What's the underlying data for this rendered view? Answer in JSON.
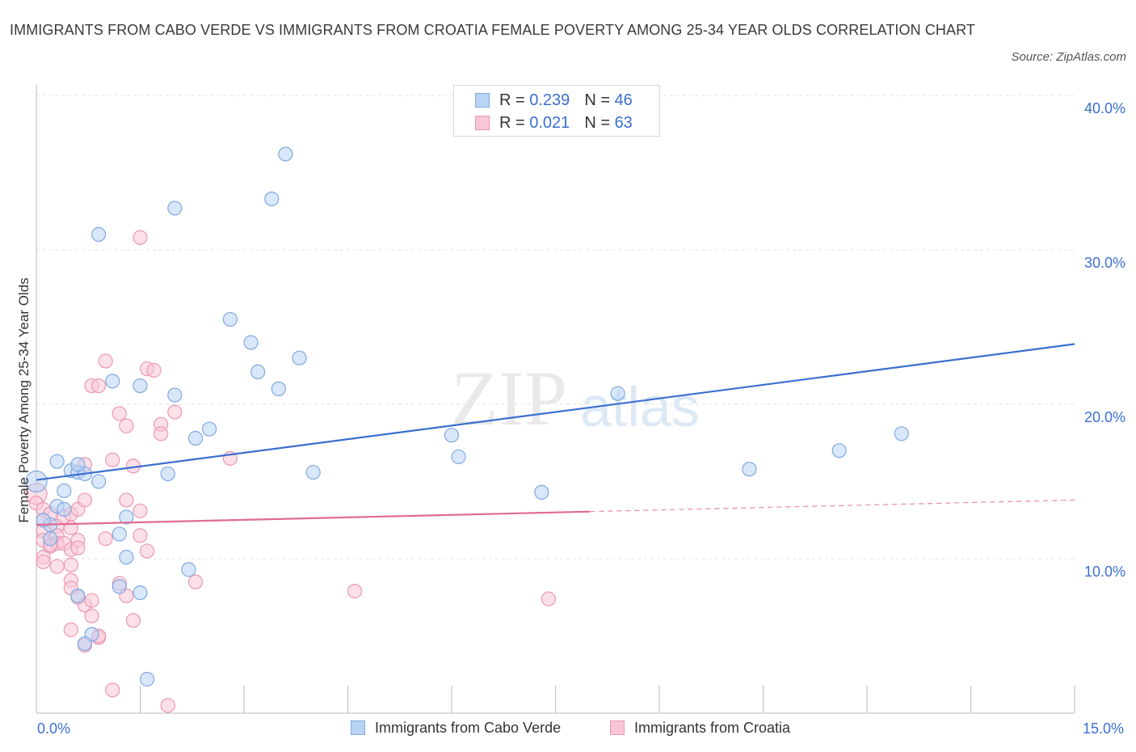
{
  "title": "IMMIGRANTS FROM CABO VERDE VS IMMIGRANTS FROM CROATIA FEMALE POVERTY AMONG 25-34 YEAR OLDS CORRELATION CHART",
  "source": "Source: ZipAtlas.com",
  "watermark": {
    "zip": "ZIP",
    "atlas": "atlas"
  },
  "legend_top": {
    "rows": [
      {
        "r_label": "R = ",
        "r_value": "0.239",
        "n_label": "N = ",
        "n_value": "46"
      },
      {
        "r_label": "R = ",
        "r_value": "0.021",
        "n_label": "N = ",
        "n_value": "63"
      }
    ]
  },
  "chart_data": {
    "type": "scatter",
    "title": "IMMIGRANTS FROM CABO VERDE VS IMMIGRANTS FROM CROATIA FEMALE POVERTY AMONG 25-34 YEAR OLDS CORRELATION CHART",
    "xlabel": "",
    "ylabel": "Female Poverty Among 25-34 Year Olds",
    "xlim": [
      0,
      15
    ],
    "ylim": [
      0,
      40
    ],
    "x_tick_labels": [
      "0.0%",
      "15.0%"
    ],
    "y_ticks": [
      10,
      20,
      30,
      40
    ],
    "y_tick_labels": [
      "10.0%",
      "20.0%",
      "30.0%",
      "40.0%"
    ],
    "grid": true,
    "colors": {
      "blue": "#3a6fd0",
      "blue_fill": "#b9d3f5",
      "pink": "#e06b94",
      "pink_fill": "#f9c6d6",
      "grid": "#e3e3e3"
    },
    "series": [
      {
        "name": "Immigrants from Cabo Verde",
        "color": "#3a6fd0",
        "trend": {
          "x0": 0,
          "y0": 15.1,
          "x1": 15,
          "y1": 23.9,
          "solid_until": 15
        },
        "points": [
          [
            0.0,
            15.0
          ],
          [
            0.3,
            16.3
          ],
          [
            0.3,
            13.4
          ],
          [
            0.5,
            15.7
          ],
          [
            0.6,
            15.6
          ],
          [
            0.7,
            15.5
          ],
          [
            0.4,
            14.4
          ],
          [
            0.2,
            12.2
          ],
          [
            0.6,
            16.1
          ],
          [
            0.9,
            31.0
          ],
          [
            1.1,
            21.5
          ],
          [
            1.5,
            21.2
          ],
          [
            2.0,
            32.7
          ],
          [
            2.0,
            20.6
          ],
          [
            2.3,
            17.8
          ],
          [
            2.5,
            18.4
          ],
          [
            2.8,
            25.5
          ],
          [
            3.1,
            24.0
          ],
          [
            3.2,
            22.1
          ],
          [
            3.4,
            33.3
          ],
          [
            3.5,
            21.0
          ],
          [
            3.6,
            36.2
          ],
          [
            3.8,
            23.0
          ],
          [
            4.0,
            15.6
          ],
          [
            0.9,
            15.0
          ],
          [
            1.3,
            12.7
          ],
          [
            1.2,
            11.6
          ],
          [
            1.3,
            10.1
          ],
          [
            1.2,
            8.2
          ],
          [
            1.5,
            7.8
          ],
          [
            2.2,
            9.3
          ],
          [
            0.6,
            7.6
          ],
          [
            0.8,
            5.1
          ],
          [
            0.7,
            4.5
          ],
          [
            1.6,
            2.2
          ],
          [
            1.9,
            15.5
          ],
          [
            6.0,
            18.0
          ],
          [
            6.1,
            16.6
          ],
          [
            7.3,
            14.3
          ],
          [
            8.4,
            20.7
          ],
          [
            10.3,
            15.8
          ],
          [
            11.6,
            17.0
          ],
          [
            12.5,
            18.1
          ],
          [
            0.1,
            12.5
          ],
          [
            0.2,
            11.3
          ],
          [
            0.4,
            13.2
          ]
        ]
      },
      {
        "name": "Immigrants from Croatia",
        "color": "#e06b94",
        "trend": {
          "x0": 0,
          "y0": 12.2,
          "x1": 15,
          "y1": 13.8,
          "solid_until": 8.0
        },
        "points": [
          [
            0.0,
            14.2
          ],
          [
            0.0,
            13.6
          ],
          [
            0.1,
            13.2
          ],
          [
            0.1,
            12.5
          ],
          [
            0.1,
            11.8
          ],
          [
            0.1,
            11.2
          ],
          [
            0.2,
            10.8
          ],
          [
            0.1,
            10.1
          ],
          [
            0.1,
            9.8
          ],
          [
            0.2,
            12.9
          ],
          [
            0.3,
            12.1
          ],
          [
            0.3,
            11.5
          ],
          [
            0.3,
            11.0
          ],
          [
            0.4,
            12.7
          ],
          [
            0.4,
            11.0
          ],
          [
            0.5,
            10.6
          ],
          [
            0.5,
            12.9
          ],
          [
            0.5,
            12.0
          ],
          [
            0.6,
            13.2
          ],
          [
            0.6,
            11.2
          ],
          [
            0.6,
            10.7
          ],
          [
            0.5,
            9.6
          ],
          [
            0.5,
            8.6
          ],
          [
            0.5,
            8.1
          ],
          [
            0.6,
            7.5
          ],
          [
            0.7,
            7.0
          ],
          [
            0.8,
            7.3
          ],
          [
            0.8,
            6.3
          ],
          [
            0.5,
            5.4
          ],
          [
            0.7,
            4.4
          ],
          [
            0.9,
            4.9
          ],
          [
            0.7,
            13.8
          ],
          [
            0.7,
            16.1
          ],
          [
            0.8,
            21.2
          ],
          [
            0.9,
            21.2
          ],
          [
            1.0,
            22.8
          ],
          [
            1.1,
            16.4
          ],
          [
            1.2,
            19.4
          ],
          [
            1.3,
            18.6
          ],
          [
            1.4,
            16.0
          ],
          [
            1.3,
            13.8
          ],
          [
            1.5,
            13.1
          ],
          [
            1.5,
            11.5
          ],
          [
            1.6,
            10.5
          ],
          [
            1.6,
            22.3
          ],
          [
            1.7,
            22.2
          ],
          [
            1.8,
            18.7
          ],
          [
            1.8,
            18.1
          ],
          [
            1.9,
            0.5
          ],
          [
            2.0,
            19.5
          ],
          [
            2.3,
            8.5
          ],
          [
            1.5,
            30.8
          ],
          [
            1.4,
            6.0
          ],
          [
            1.3,
            7.6
          ],
          [
            1.0,
            11.3
          ],
          [
            1.2,
            8.4
          ],
          [
            2.8,
            16.5
          ],
          [
            4.6,
            7.9
          ],
          [
            7.4,
            7.4
          ],
          [
            0.3,
            9.5
          ],
          [
            0.9,
            5.0
          ],
          [
            1.1,
            1.5
          ],
          [
            0.2,
            10.9
          ]
        ]
      }
    ]
  },
  "legend_bottom": [
    "Immigrants from Cabo Verde",
    "Immigrants from Croatia"
  ]
}
